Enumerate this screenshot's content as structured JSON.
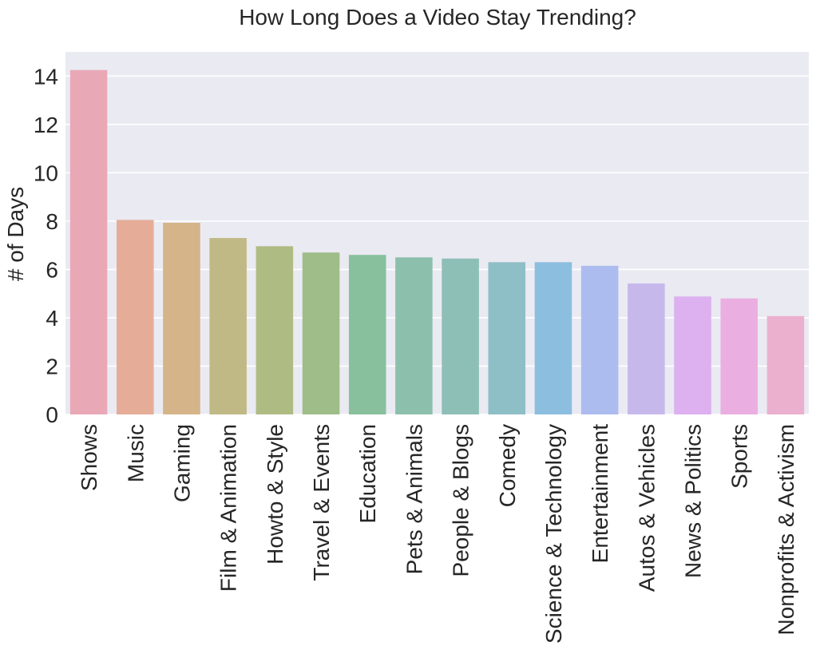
{
  "chart_data": {
    "type": "bar",
    "title": "How Long Does a Video Stay Trending?",
    "xlabel": "",
    "ylabel": "# of Days",
    "ylim": [
      0,
      15
    ],
    "yticks": [
      0,
      2,
      4,
      6,
      8,
      10,
      12,
      14
    ],
    "ytick_labels": [
      "0",
      "2",
      "4",
      "6",
      "8",
      "10",
      "12",
      "14"
    ],
    "grid": true,
    "legend": "none",
    "categories": [
      "Shows",
      "Music",
      "Gaming",
      "Film & Animation",
      "Howto & Style",
      "Travel & Events",
      "Education",
      "Pets & Animals",
      "People & Blogs",
      "Comedy",
      "Science & Technology",
      "Entertainment",
      "Autos & Vehicles",
      "News & Politics",
      "Sports",
      "Nonprofits & Activism"
    ],
    "values": [
      14.25,
      8.05,
      7.93,
      7.3,
      6.96,
      6.7,
      6.6,
      6.5,
      6.45,
      6.3,
      6.3,
      6.15,
      5.42,
      4.88,
      4.8,
      4.07
    ],
    "colors": [
      "#e9a8b6",
      "#e5ad98",
      "#d4b488",
      "#c0b985",
      "#aebc84",
      "#9ebd89",
      "#88c09d",
      "#8cc0ac",
      "#8dbfb6",
      "#8ebec6",
      "#8cbee0",
      "#adbcef",
      "#c7b8ec",
      "#ddb0ef",
      "#ebaee1",
      "#eab0ce"
    ],
    "plot_background": "#eaeaf2",
    "grid_color": "#ffffff"
  }
}
